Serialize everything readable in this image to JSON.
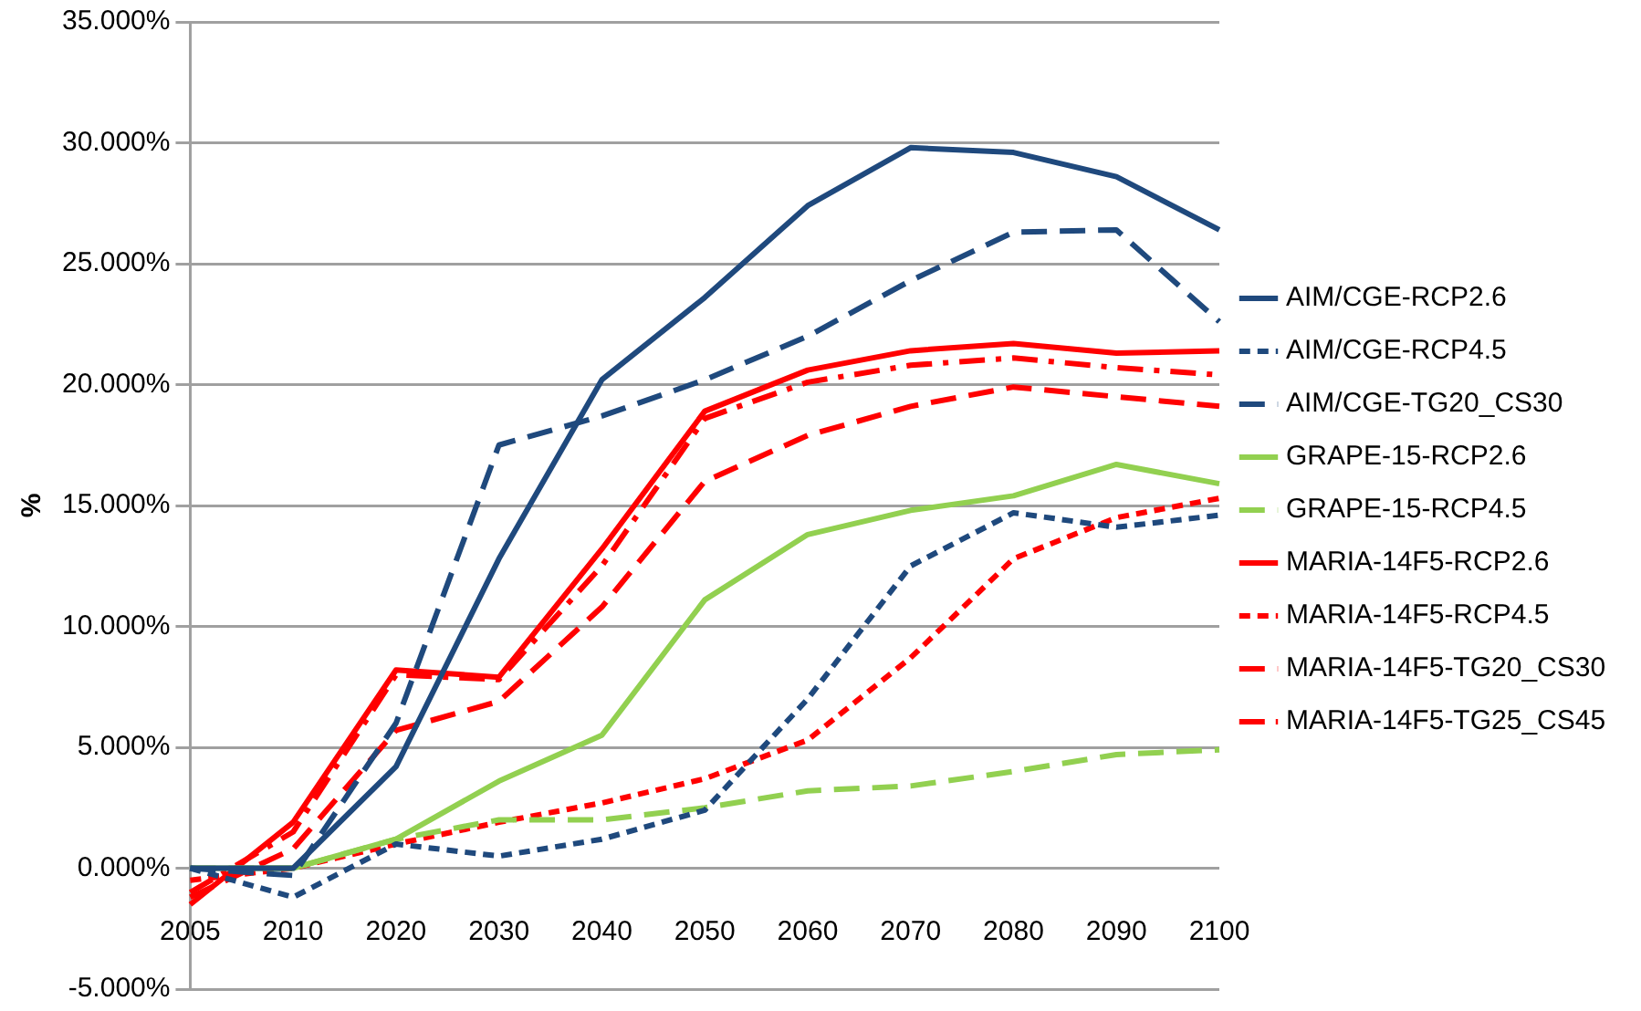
{
  "chart_data": {
    "type": "line",
    "ylabel": "%",
    "categories": [
      "2005",
      "2010",
      "2020",
      "2030",
      "2040",
      "2050",
      "2060",
      "2070",
      "2080",
      "2090",
      "2100"
    ],
    "ylim": [
      -5,
      35
    ],
    "yticks": [
      {
        "value": -5,
        "label": "-5.000%"
      },
      {
        "value": 0,
        "label": "0.000%"
      },
      {
        "value": 5,
        "label": "5.000%"
      },
      {
        "value": 10,
        "label": "10.000%"
      },
      {
        "value": 15,
        "label": "15.000%"
      },
      {
        "value": 20,
        "label": "20.000%"
      },
      {
        "value": 25,
        "label": "25.000%"
      },
      {
        "value": 30,
        "label": "30.000%"
      },
      {
        "value": 35,
        "label": "35.000%"
      }
    ],
    "grid": "y",
    "legend": "right",
    "marker": "none",
    "series": [
      {
        "name": "AIM/CGE-RCP2.6",
        "color": "#1f497d",
        "line_style": "solid",
        "values": [
          0,
          0,
          4.2,
          12.8,
          20.2,
          23.6,
          27.4,
          29.8,
          29.6,
          28.6,
          26.4
        ]
      },
      {
        "name": "AIM/CGE-RCP4.5",
        "color": "#1f497d",
        "line_style": "dotted",
        "values": [
          0,
          -1.2,
          1,
          0.5,
          1.2,
          2.4,
          7,
          12.5,
          14.7,
          14.1,
          14.6
        ]
      },
      {
        "name": "AIM/CGE-TG20_CS30",
        "color": "#1f497d",
        "line_style": "dashed",
        "values": [
          0,
          -0.3,
          6,
          17.5,
          18.7,
          20.2,
          22,
          24.3,
          26.3,
          26.4,
          22.6
        ]
      },
      {
        "name": "GRAPE-15-RCP2.6",
        "color": "#92d050",
        "line_style": "solid",
        "values": [
          0,
          0,
          1.2,
          3.6,
          5.5,
          11.1,
          13.8,
          14.8,
          15.4,
          16.7,
          15.9
        ]
      },
      {
        "name": "GRAPE-15-RCP4.5",
        "color": "#92d050",
        "line_style": "dashed",
        "values": [
          0,
          0,
          1.2,
          2,
          2,
          2.5,
          3.2,
          3.4,
          4,
          4.7,
          4.9
        ]
      },
      {
        "name": "MARIA-14F5-RCP2.6",
        "color": "#ff0000",
        "line_style": "solid",
        "values": [
          -1.5,
          1.9,
          8.2,
          7.9,
          13.2,
          18.9,
          20.6,
          21.4,
          21.7,
          21.3,
          21.4
        ]
      },
      {
        "name": "MARIA-14F5-RCP4.5",
        "color": "#ff0000",
        "line_style": "dotted",
        "values": [
          -0.5,
          0,
          1,
          1.9,
          2.7,
          3.7,
          5.3,
          8.7,
          12.8,
          14.5,
          15.3
        ]
      },
      {
        "name": "MARIA-14F5-TG20_CS30",
        "color": "#ff0000",
        "line_style": "dashed",
        "values": [
          -1.2,
          0.8,
          5.7,
          6.9,
          10.8,
          16,
          17.9,
          19.1,
          19.9,
          19.5,
          19.1
        ]
      },
      {
        "name": "MARIA-14F5-TG25_CS45",
        "color": "#ff0000",
        "line_style": "dashdot",
        "values": [
          -1,
          1.5,
          8,
          7.8,
          12.5,
          18.6,
          20.1,
          20.8,
          21.1,
          20.7,
          20.4
        ]
      }
    ]
  }
}
